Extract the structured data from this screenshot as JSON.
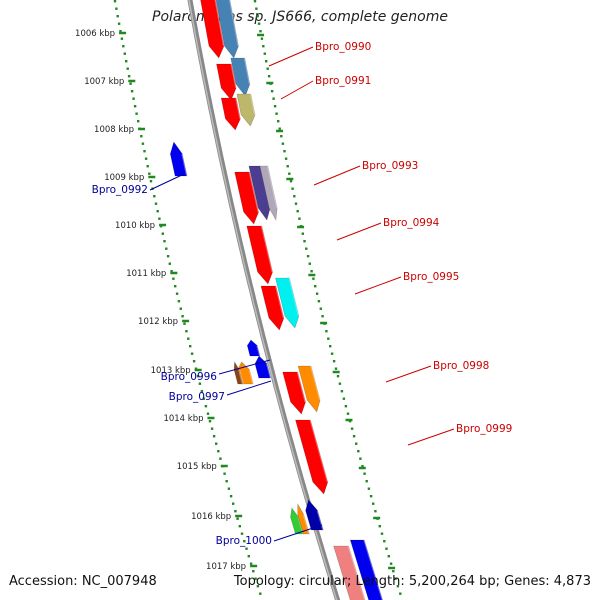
{
  "title": "Polaromonas sp. JS666, complete genome",
  "footer": {
    "accession": "Accession: NC_007948",
    "topology": "Topology: circular; Length: 5,200,264 bp; Genes: 4,873"
  },
  "tick_labels": [
    "1006 kbp",
    "1007 kbp",
    "1008 kbp",
    "1009 kbp",
    "1010 kbp",
    "1011 kbp",
    "1012 kbp",
    "1013 kbp",
    "1014 kbp",
    "1015 kbp",
    "1016 kbp",
    "1017 kbp"
  ],
  "genes": [
    {
      "label": "Bpro_0990",
      "color": "#cc0000"
    },
    {
      "label": "Bpro_0991",
      "color": "#cc0000"
    },
    {
      "label": "Bpro_0992",
      "color": "#000099"
    },
    {
      "label": "Bpro_0993",
      "color": "#cc0000"
    },
    {
      "label": "Bpro_0994",
      "color": "#cc0000"
    },
    {
      "label": "Bpro_0995",
      "color": "#cc0000"
    },
    {
      "label": "Bpro_0996",
      "color": "#000099"
    },
    {
      "label": "Bpro_0997",
      "color": "#000099"
    },
    {
      "label": "Bpro_0998",
      "color": "#cc0000"
    },
    {
      "label": "Bpro_0999",
      "color": "#cc0000"
    },
    {
      "label": "Bpro_1000",
      "color": "#000099"
    }
  ],
  "colors": {
    "backbone": "#888888",
    "ticks": "#228822",
    "forward_gene": "#ff0000",
    "reverse_gene": "#0000ee"
  }
}
